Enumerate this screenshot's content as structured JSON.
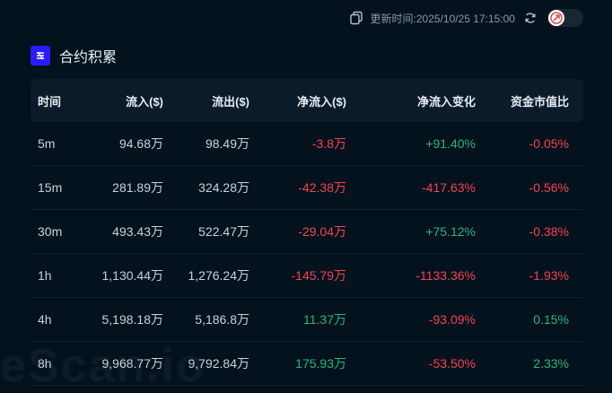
{
  "header": {
    "update_time": "更新时间:2025/10/25 17:15:00"
  },
  "section": {
    "title": "合约积累"
  },
  "table": {
    "columns": [
      "时间",
      "流入($)",
      "流出($)",
      "净流入($)",
      "净流入变化",
      "资金市值比"
    ],
    "rows": [
      {
        "period": "5m",
        "inflow": "94.68万",
        "outflow": "98.49万",
        "net": "-3.8万",
        "net_sign": "neg",
        "change": "+91.40%",
        "change_sign": "pos",
        "ratio": "-0.05%",
        "ratio_sign": "neg"
      },
      {
        "period": "15m",
        "inflow": "281.89万",
        "outflow": "324.28万",
        "net": "-42.38万",
        "net_sign": "neg",
        "change": "-417.63%",
        "change_sign": "neg",
        "ratio": "-0.56%",
        "ratio_sign": "neg"
      },
      {
        "period": "30m",
        "inflow": "493.43万",
        "outflow": "522.47万",
        "net": "-29.04万",
        "net_sign": "neg",
        "change": "+75.12%",
        "change_sign": "pos",
        "ratio": "-0.38%",
        "ratio_sign": "neg"
      },
      {
        "period": "1h",
        "inflow": "1,130.44万",
        "outflow": "1,276.24万",
        "net": "-145.79万",
        "net_sign": "neg",
        "change": "-1133.36%",
        "change_sign": "neg",
        "ratio": "-1.93%",
        "ratio_sign": "neg"
      },
      {
        "period": "4h",
        "inflow": "5,198.18万",
        "outflow": "5,186.8万",
        "net": "11.37万",
        "net_sign": "pos",
        "change": "-93.09%",
        "change_sign": "neg",
        "ratio": "0.15%",
        "ratio_sign": "pos"
      },
      {
        "period": "8h",
        "inflow": "9,968.77万",
        "outflow": "9,792.84万",
        "net": "175.93万",
        "net_sign": "pos",
        "change": "-53.50%",
        "change_sign": "neg",
        "ratio": "2.33%",
        "ratio_sign": "pos"
      }
    ]
  },
  "watermark": "eScan.io",
  "colors": {
    "negative": "#f0444f",
    "positive": "#25b67a",
    "brand": "#2b1bff"
  }
}
